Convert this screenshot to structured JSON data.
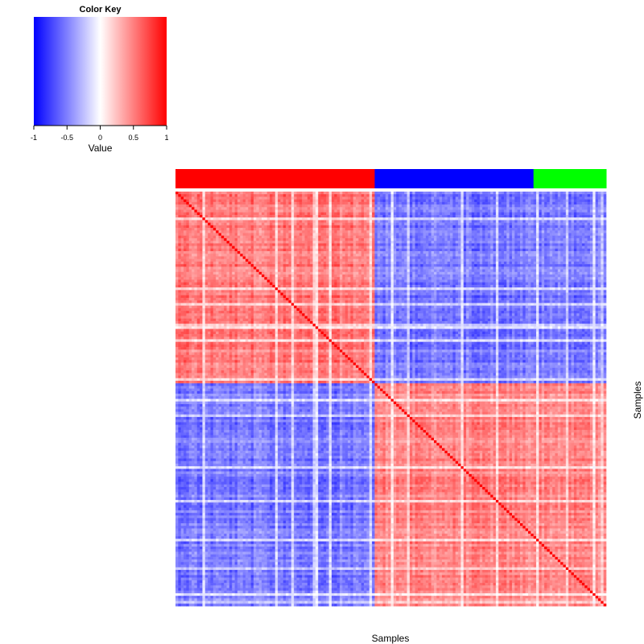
{
  "color_key": {
    "title": "Color Key",
    "label": "Value",
    "ticks": [
      {
        "value": -1,
        "label": "-1"
      },
      {
        "value": -0.5,
        "label": "-0.5"
      },
      {
        "value": 0,
        "label": "0"
      },
      {
        "value": 0.5,
        "label": "0.5"
      },
      {
        "value": 1,
        "label": "1"
      }
    ],
    "range": [
      -1,
      1
    ],
    "colors": {
      "low": "#0000ff",
      "mid": "#ffffff",
      "high": "#ff0000"
    }
  },
  "chart_data": {
    "type": "heatmap",
    "title": "",
    "xlabel": "Samples",
    "ylabel": "Samples",
    "n_samples": 160,
    "value_range": [
      -1,
      1
    ],
    "diagonal_value": 1,
    "groups": [
      {
        "color": "#ff0000",
        "count": 74
      },
      {
        "color": "#0000ff",
        "count": 59
      },
      {
        "color": "#00ff00",
        "count": 27
      }
    ],
    "block_correlation": {
      "within_group_1": 0.6,
      "within_groups_2_3": 0.55,
      "between_group_1_and_2_3": -0.6
    }
  }
}
